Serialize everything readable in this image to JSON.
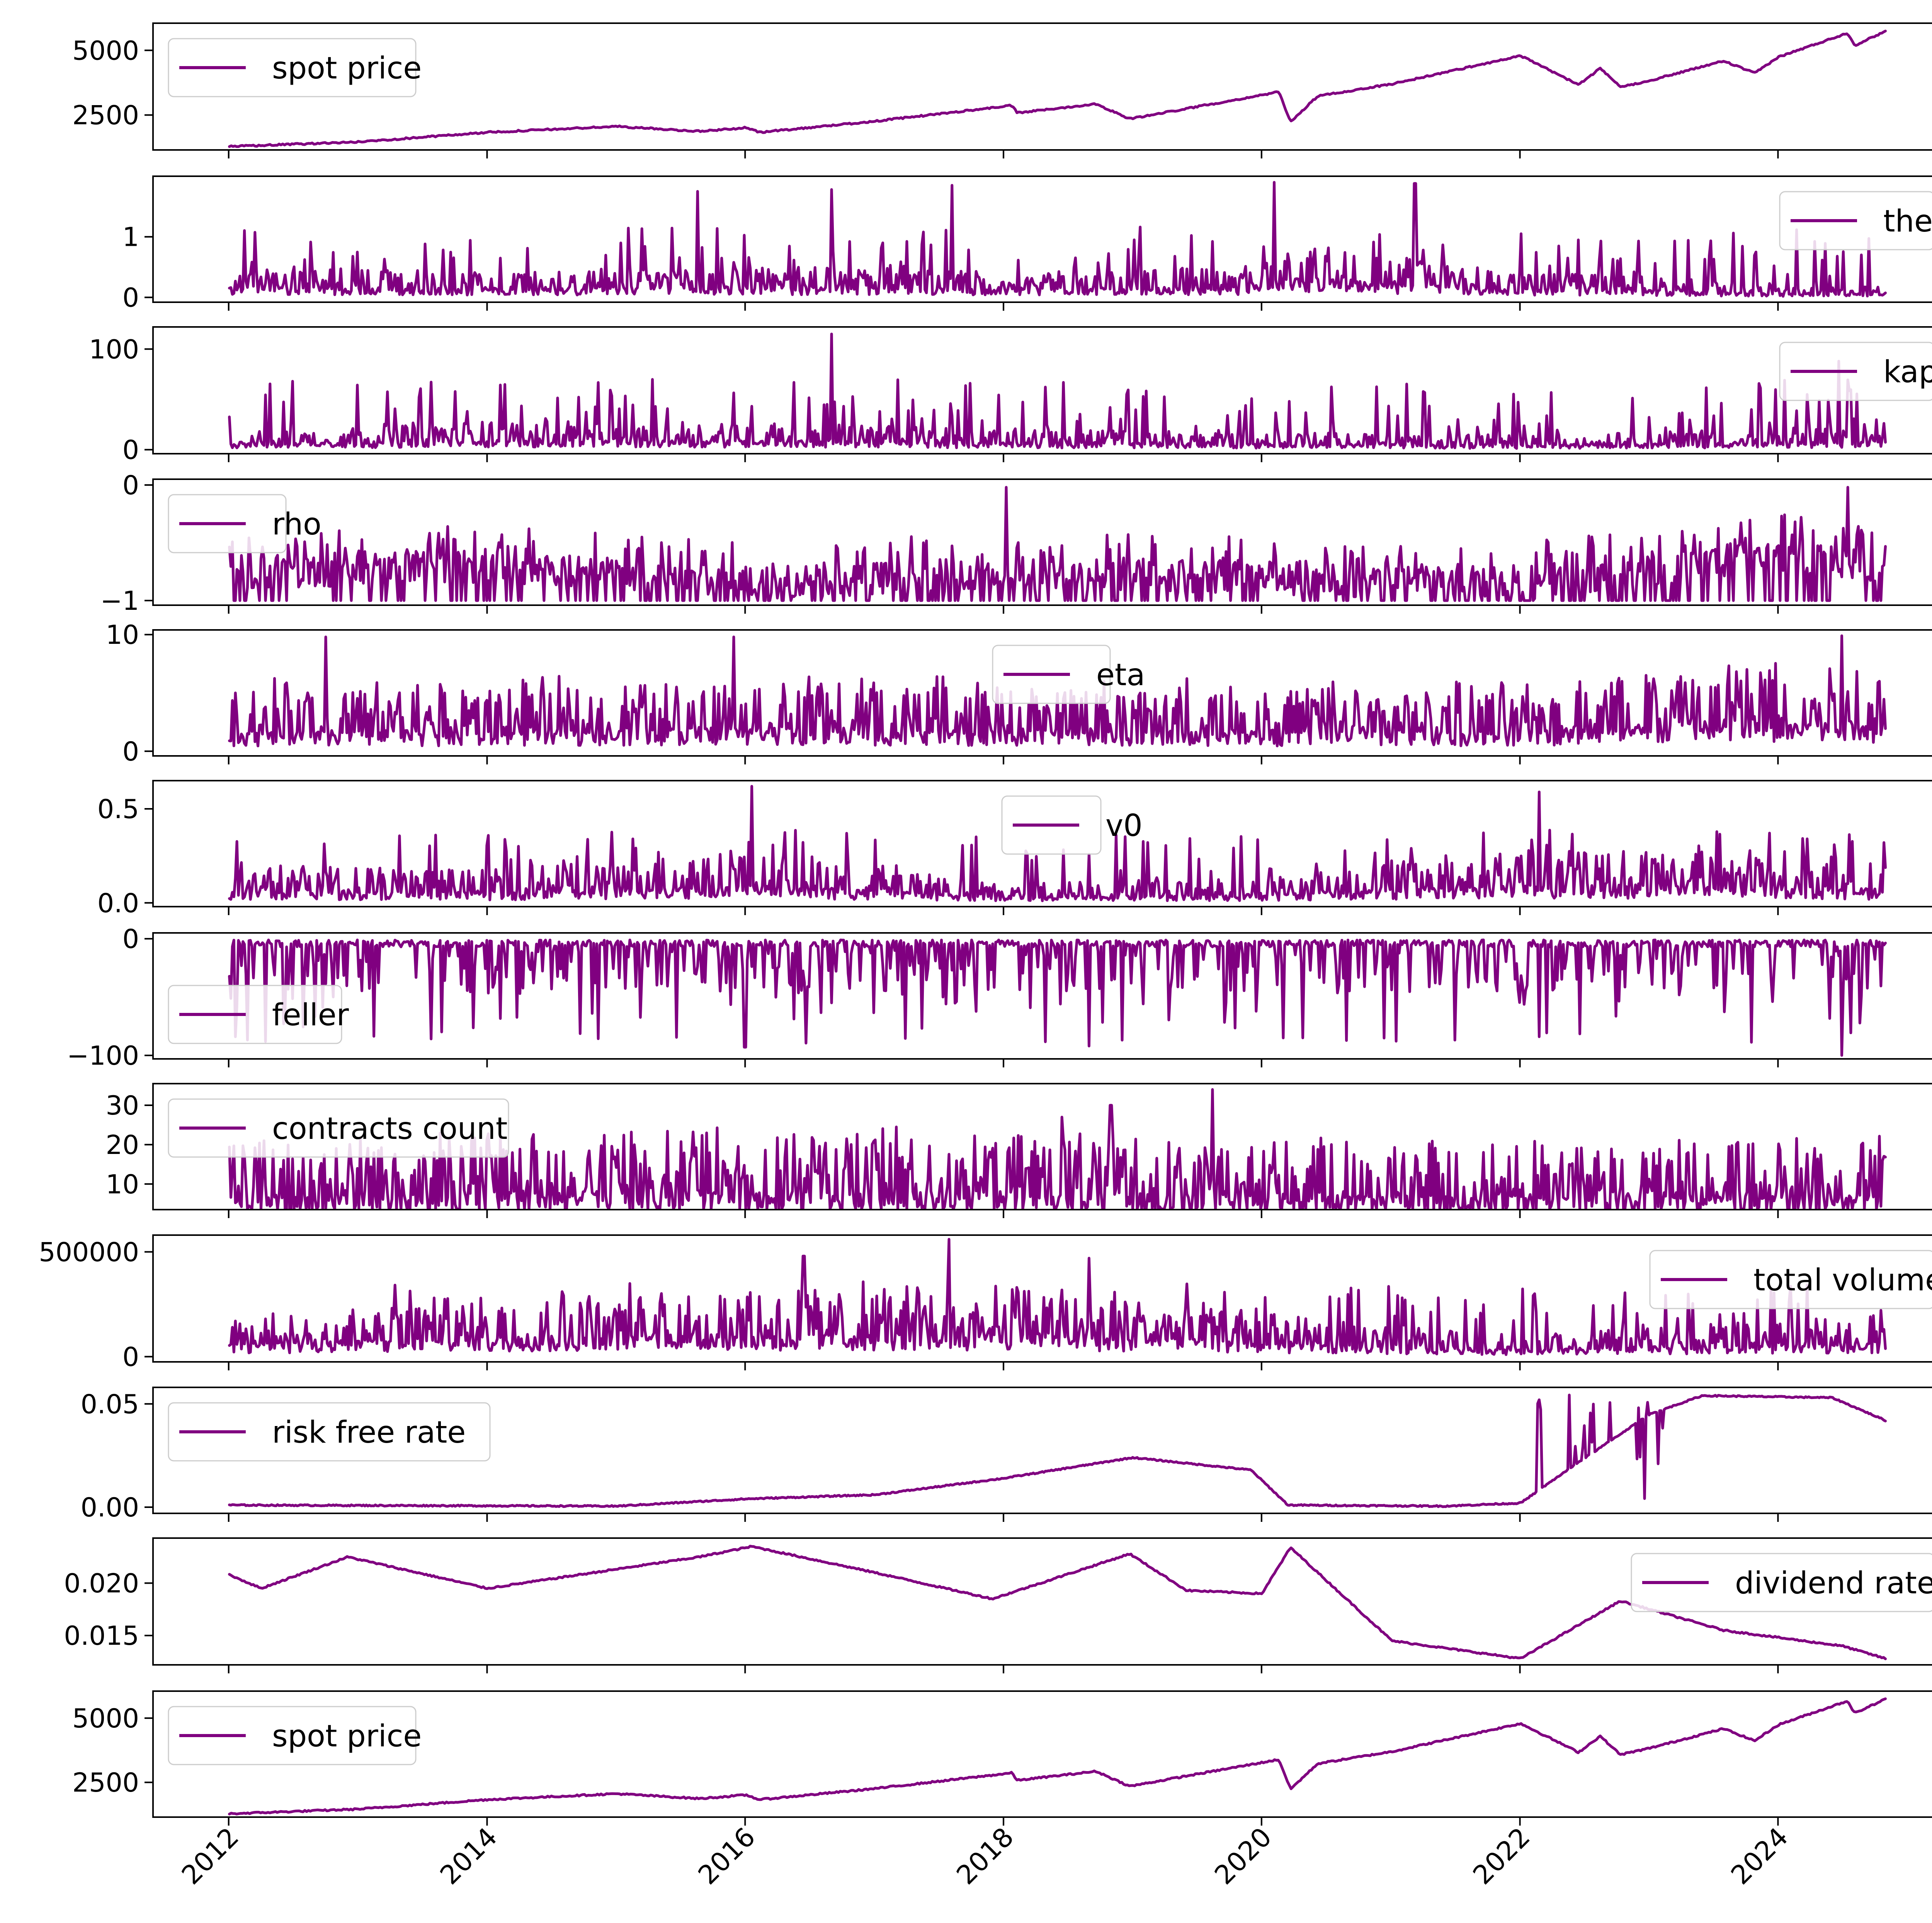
{
  "colors": {
    "series": "#800080",
    "axis": "#000000",
    "legend_border": "#cccccc"
  },
  "chart_data": [
    {
      "type": "line",
      "series": [
        {
          "name": "spot price",
          "x": [
            "2012-01-03",
            "2013-01-02",
            "2014-01-02",
            "2015-01-02",
            "2015-08-25",
            "2016-01-04",
            "2016-02-11",
            "2017-01-03",
            "2018-01-26",
            "2018-02-08",
            "2018-09-20",
            "2018-12-24",
            "2019-06-03",
            "2020-02-19",
            "2020-03-23",
            "2020-06-08",
            "2021-01-04",
            "2022-01-03",
            "2022-06-16",
            "2022-08-16",
            "2022-10-12",
            "2023-01-03",
            "2023-07-31",
            "2023-10-27",
            "2024-01-02",
            "2024-07-16",
            "2024-08-05",
            "2024-10-31"
          ],
          "values": [
            1280,
            1460,
            1830,
            2060,
            1870,
            2010,
            1830,
            2260,
            2870,
            2580,
            2930,
            2350,
            2750,
            3390,
            2240,
            3230,
            3700,
            4790,
            3670,
            4300,
            3580,
            3830,
            4590,
            4120,
            4740,
            5670,
            5190,
            5740
          ]
        }
      ],
      "legend_position": "upper left",
      "yticks": [
        "2500",
        "5000"
      ],
      "ylim": [
        1150,
        6050
      ]
    },
    {
      "type": "line",
      "series": [
        {
          "name": "theta",
          "x": [
            "2012-01-03",
            "2014-01-02",
            "2016-01-04",
            "2018-01-02",
            "2020-01-02",
            "2020-04-01",
            "2021-01-04",
            "2022-01-03",
            "2023-01-03",
            "2024-01-02",
            "2024-10-31"
          ],
          "values": [
            0.15,
            0.12,
            0.15,
            0.12,
            0.15,
            0.3,
            0.2,
            0.12,
            0.1,
            0.05,
            0.05
          ],
          "peaks": [
            {
              "x": "2015-08-20",
              "value": 1.75
            },
            {
              "x": "2016-09-01",
              "value": 1.78
            },
            {
              "x": "2017-08-10",
              "value": 1.85
            },
            {
              "x": "2020-02-05",
              "value": 1.9
            },
            {
              "x": "2021-03-10",
              "value": 1.88
            }
          ]
        }
      ],
      "legend_position": "upper right",
      "yticks": [
        "0",
        "1"
      ],
      "ylim": [
        -0.08,
        2.0
      ]
    },
    {
      "type": "line",
      "series": [
        {
          "name": "kappa",
          "x": [
            "2012-01-03",
            "2014-01-02",
            "2016-01-04",
            "2018-01-02",
            "2020-01-02",
            "2022-01-03",
            "2024-01-02",
            "2024-10-31"
          ],
          "values": [
            5,
            8,
            8,
            6,
            5,
            4,
            6,
            8
          ],
          "peaks": [
            {
              "x": "2016-09-01",
              "value": 115
            },
            {
              "x": "2024-06-20",
              "value": 88
            },
            {
              "x": "2012-07-01",
              "value": 68
            }
          ]
        }
      ],
      "legend_position": "upper right",
      "yticks": [
        "0",
        "100"
      ],
      "ylim": [
        -4,
        122
      ]
    },
    {
      "type": "line",
      "series": [
        {
          "name": "rho",
          "x": [
            "2012-01-03",
            "2014-01-02",
            "2016-01-04",
            "2018-01-02",
            "2020-01-02",
            "2022-01-03",
            "2024-01-02",
            "2024-10-31"
          ],
          "values": [
            -0.75,
            -0.7,
            -0.85,
            -0.75,
            -0.8,
            -0.85,
            -0.6,
            -0.7
          ],
          "peaks": [
            {
              "x": "2018-01-08",
              "value": -0.02
            },
            {
              "x": "2024-07-15",
              "value": -0.02
            }
          ]
        }
      ],
      "legend_position": "upper left",
      "yticks": [
        "0",
        "−1"
      ],
      "ylim": [
        -1.04,
        0.05
      ]
    },
    {
      "type": "line",
      "series": [
        {
          "name": "eta",
          "x": [
            "2012-01-03",
            "2014-01-02",
            "2016-01-04",
            "2018-01-02",
            "2020-01-02",
            "2022-01-03",
            "2024-01-02",
            "2024-10-31"
          ],
          "values": [
            1.5,
            1.5,
            1.8,
            1.5,
            1.5,
            1.5,
            2.5,
            2.0
          ],
          "peaks": [
            {
              "x": "2012-10-01",
              "value": 9.8
            },
            {
              "x": "2015-12-01",
              "value": 9.8
            },
            {
              "x": "2024-07-01",
              "value": 9.9
            }
          ]
        }
      ],
      "legend_position": "upper center",
      "yticks": [
        "0",
        "10"
      ],
      "ylim": [
        -0.4,
        10.4
      ]
    },
    {
      "type": "line",
      "series": [
        {
          "name": "v0",
          "x": [
            "2012-01-03",
            "2014-01-02",
            "2016-01-04",
            "2018-01-02",
            "2020-01-02",
            "2022-01-03",
            "2024-01-02",
            "2024-10-31"
          ],
          "values": [
            0.06,
            0.05,
            0.08,
            0.03,
            0.04,
            0.08,
            0.08,
            0.06
          ],
          "peaks": [
            {
              "x": "2016-01-20",
              "value": 0.62
            },
            {
              "x": "2022-02-24",
              "value": 0.59
            }
          ]
        }
      ],
      "legend_position": "upper center",
      "yticks": [
        "0.0",
        "0.5"
      ],
      "ylim": [
        -0.02,
        0.65
      ]
    },
    {
      "type": "line",
      "series": [
        {
          "name": "feller",
          "x": [
            "2012-01-03",
            "2014-01-02",
            "2016-01-04",
            "2018-01-02",
            "2020-01-02",
            "2022-01-03",
            "2024-01-02",
            "2024-10-31"
          ],
          "values": [
            -5,
            -5,
            -8,
            -5,
            -5,
            -8,
            -10,
            -8
          ],
          "peaks": [
            {
              "x": "2016-01-01",
              "value": -93
            },
            {
              "x": "2018-09-01",
              "value": -92
            },
            {
              "x": "2024-07-01",
              "value": -100
            }
          ]
        }
      ],
      "legend_position": "lower left",
      "yticks": [
        "0",
        "−100"
      ],
      "ylim": [
        -103,
        5
      ]
    },
    {
      "type": "line",
      "series": [
        {
          "name": "contracts count",
          "x": [
            "2012-01-03",
            "2014-01-02",
            "2016-01-04",
            "2018-01-02",
            "2020-01-02",
            "2022-01-03",
            "2024-01-02",
            "2024-10-31"
          ],
          "values": [
            6,
            7,
            7,
            7,
            6,
            6,
            6,
            6
          ],
          "peaks": [
            {
              "x": "2019-08-15",
              "value": 34
            },
            {
              "x": "2018-11-01",
              "value": 30
            },
            {
              "x": "2018-06-15",
              "value": 27
            }
          ]
        }
      ],
      "legend_position": "upper left",
      "yticks": [
        "10",
        "20",
        "30"
      ],
      "ylim": [
        3.5,
        35.5
      ]
    },
    {
      "type": "line",
      "series": [
        {
          "name": "total volume",
          "x": [
            "2012-01-03",
            "2014-01-02",
            "2016-01-04",
            "2018-01-02",
            "2020-01-02",
            "2021-01-04",
            "2022-01-03",
            "2024-01-02",
            "2024-10-31"
          ],
          "values": [
            50000,
            80000,
            90000,
            100000,
            60000,
            40000,
            30000,
            50000,
            60000
          ],
          "peaks": [
            {
              "x": "2017-08-01",
              "value": 560000
            },
            {
              "x": "2016-06-15",
              "value": 480000
            },
            {
              "x": "2018-09-01",
              "value": 470000
            }
          ]
        }
      ],
      "legend_position": "upper right",
      "yticks": [
        "0",
        "500000"
      ],
      "ylim": [
        -25000,
        580000
      ]
    },
    {
      "type": "line",
      "series": [
        {
          "name": "risk free rate",
          "x": [
            "2012-01-03",
            "2015-01-02",
            "2016-01-04",
            "2017-01-03",
            "2018-01-02",
            "2019-01-02",
            "2019-12-02",
            "2020-03-16",
            "2021-06-01",
            "2022-01-03",
            "2022-06-01",
            "2023-01-03",
            "2023-06-01",
            "2024-06-03",
            "2024-10-31"
          ],
          "values": [
            0.001,
            0.0005,
            0.004,
            0.006,
            0.014,
            0.024,
            0.018,
            0.001,
            0.0005,
            0.002,
            0.02,
            0.045,
            0.054,
            0.053,
            0.042
          ]
        }
      ],
      "legend_position": "upper left",
      "yticks": [
        "0.00",
        "0.05"
      ],
      "ylim": [
        -0.003,
        0.058
      ]
    },
    {
      "type": "line",
      "series": [
        {
          "name": "dividend rate",
          "x": [
            "2012-01-03",
            "2012-04-02",
            "2012-12-03",
            "2014-01-02",
            "2015-08-24",
            "2016-01-20",
            "2017-01-03",
            "2017-12-01",
            "2018-12-24",
            "2019-06-03",
            "2020-01-02",
            "2020-03-23",
            "2021-01-04",
            "2022-01-03",
            "2022-10-12",
            "2023-07-31",
            "2024-07-01",
            "2024-10-31"
          ],
          "values": [
            0.0208,
            0.0195,
            0.0225,
            0.0195,
            0.0225,
            0.0235,
            0.021,
            0.0185,
            0.0228,
            0.0193,
            0.019,
            0.0234,
            0.0145,
            0.0128,
            0.0183,
            0.0155,
            0.014,
            0.0128
          ]
        }
      ],
      "legend_position": "upper right",
      "yticks": [
        "0.015",
        "0.020"
      ],
      "ylim": [
        0.0122,
        0.0243
      ]
    },
    {
      "type": "line",
      "series": [
        {
          "name": "spot price",
          "x": [
            "2012-01-03",
            "2013-01-02",
            "2014-01-02",
            "2015-01-02",
            "2015-08-25",
            "2016-01-04",
            "2016-02-11",
            "2017-01-03",
            "2018-01-26",
            "2018-02-08",
            "2018-09-20",
            "2018-12-24",
            "2019-06-03",
            "2020-02-19",
            "2020-03-23",
            "2020-06-08",
            "2021-01-04",
            "2022-01-03",
            "2022-06-16",
            "2022-08-16",
            "2022-10-12",
            "2023-01-03",
            "2023-07-31",
            "2023-10-27",
            "2024-01-02",
            "2024-07-16",
            "2024-08-05",
            "2024-10-31"
          ],
          "values": [
            1280,
            1460,
            1830,
            2060,
            1870,
            2010,
            1830,
            2260,
            2870,
            2580,
            2930,
            2350,
            2750,
            3390,
            2240,
            3230,
            3700,
            4790,
            3670,
            4300,
            3580,
            3830,
            4590,
            4120,
            4740,
            5670,
            5190,
            5740
          ]
        }
      ],
      "legend_position": "upper left",
      "yticks": [
        "2500",
        "5000"
      ],
      "ylim": [
        1150,
        6050
      ],
      "xticks": [
        "2012",
        "2014",
        "2016",
        "2018",
        "2020",
        "2022",
        "2024"
      ]
    }
  ]
}
